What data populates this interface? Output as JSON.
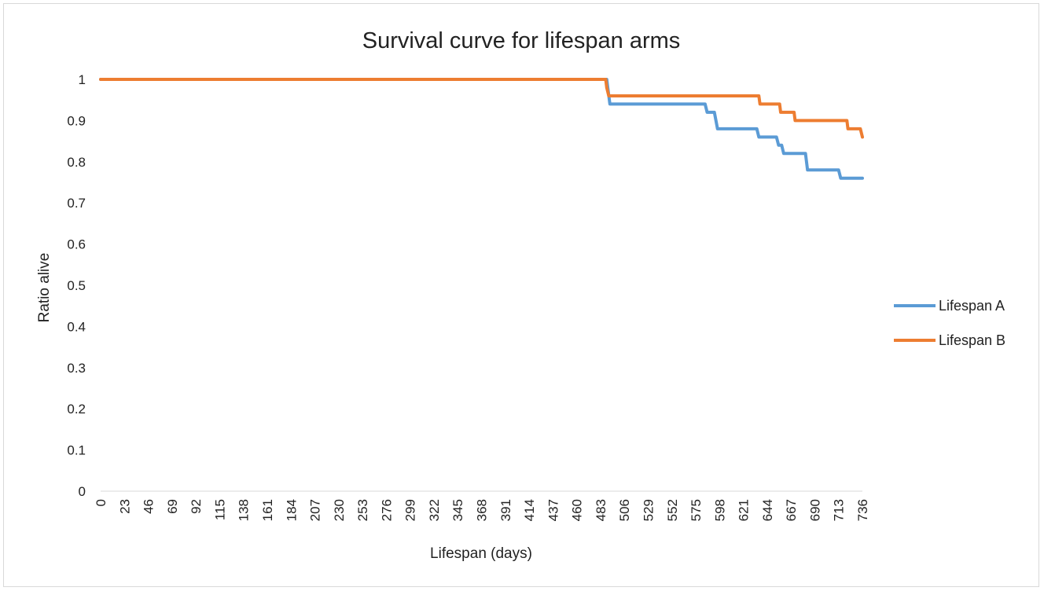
{
  "chart_data": {
    "type": "line",
    "title": "Survival curve for lifespan arms",
    "xlabel": "Lifespan (days)",
    "ylabel": "Ratio alive",
    "xlim": [
      0,
      736
    ],
    "ylim": [
      0,
      1
    ],
    "x_ticks": [
      "0",
      "23",
      "46",
      "69",
      "92",
      "115",
      "138",
      "161",
      "184",
      "207",
      "230",
      "253",
      "276",
      "299",
      "322",
      "345",
      "368",
      "391",
      "414",
      "437",
      "460",
      "483",
      "506",
      "529",
      "552",
      "575",
      "598",
      "621",
      "644",
      "667",
      "690",
      "713",
      "736"
    ],
    "y_ticks": [
      "0",
      "0.1",
      "0.2",
      "0.3",
      "0.4",
      "0.5",
      "0.6",
      "0.7",
      "0.8",
      "0.9",
      "1"
    ],
    "grid": false,
    "legend_position": "right",
    "series": [
      {
        "name": "Lifespan A",
        "color": "#5b9bd5",
        "x": [
          0,
          489,
          490,
          492,
          584,
          586,
          593,
          596,
          634,
          636,
          653,
          655,
          658,
          660,
          681,
          683,
          713,
          715,
          736
        ],
        "y": [
          1,
          1,
          0.98,
          0.94,
          0.94,
          0.92,
          0.92,
          0.88,
          0.88,
          0.86,
          0.86,
          0.84,
          0.84,
          0.82,
          0.82,
          0.78,
          0.78,
          0.76,
          0.76
        ]
      },
      {
        "name": "Lifespan B",
        "color": "#ed7d31",
        "x": [
          0,
          488,
          489,
          491,
          636,
          637,
          656,
          657,
          670,
          671,
          721,
          722,
          734,
          736
        ],
        "y": [
          1,
          1,
          0.98,
          0.96,
          0.96,
          0.94,
          0.94,
          0.92,
          0.92,
          0.9,
          0.9,
          0.88,
          0.88,
          0.86
        ]
      }
    ]
  }
}
